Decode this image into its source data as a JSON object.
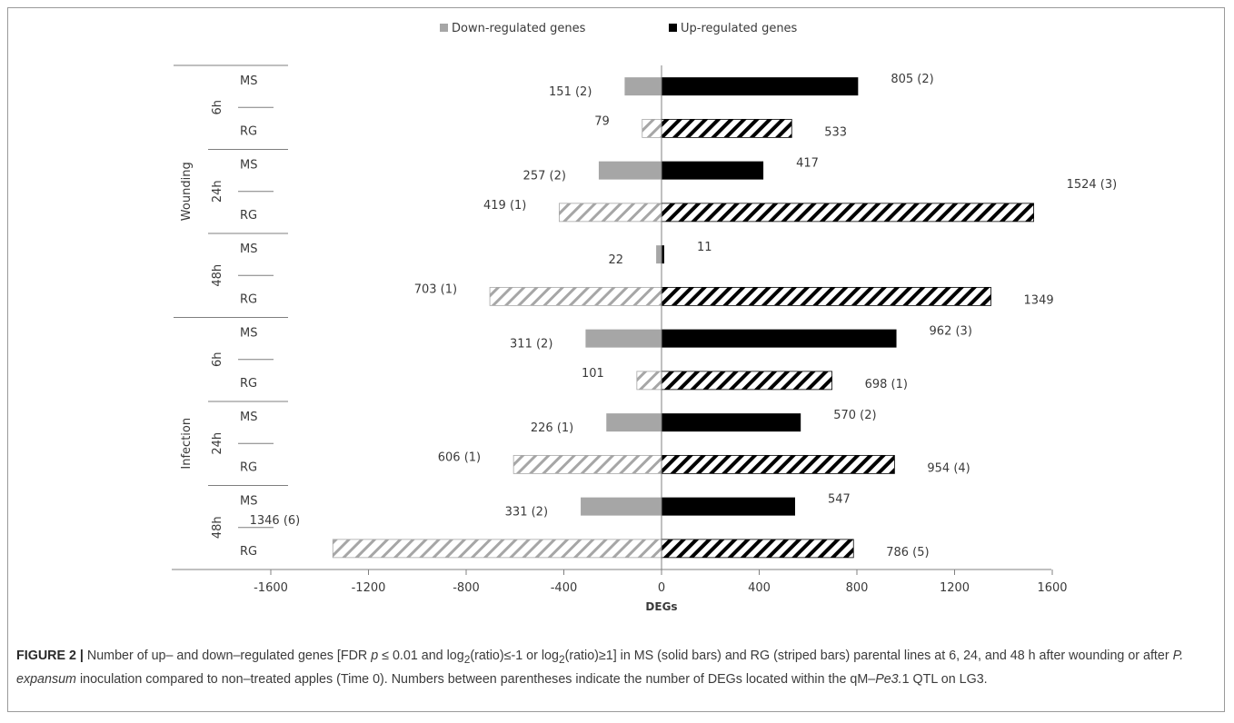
{
  "chart_data": {
    "type": "bar",
    "orientation": "horizontal",
    "xlabel": "DEGs",
    "xlim": [
      -1600,
      1600
    ],
    "xticks": [
      "-1600",
      "-1200",
      "-800",
      "-400",
      "0",
      "400",
      "800",
      "1200",
      "1600"
    ],
    "legend_position": "top-center",
    "group_labels": [
      "Wounding",
      "Infection"
    ],
    "time_labels": [
      "6h",
      "24h",
      "48h"
    ],
    "rows": [
      {
        "group": "Wounding",
        "time": "6h",
        "line": "MS",
        "down": 151,
        "up": 805,
        "down_label": "151 (2)",
        "up_label": "805 (2)"
      },
      {
        "group": "Wounding",
        "time": "6h",
        "line": "RG",
        "down": 79,
        "up": 533,
        "down_label": "79",
        "up_label": "533"
      },
      {
        "group": "Wounding",
        "time": "24h",
        "line": "MS",
        "down": 257,
        "up": 417,
        "down_label": "257 (2)",
        "up_label": "417"
      },
      {
        "group": "Wounding",
        "time": "24h",
        "line": "RG",
        "down": 419,
        "up": 1524,
        "down_label": "419 (1)",
        "up_label": "1524 (3)"
      },
      {
        "group": "Wounding",
        "time": "48h",
        "line": "MS",
        "down": 22,
        "up": 11,
        "down_label": "22",
        "up_label": "11"
      },
      {
        "group": "Wounding",
        "time": "48h",
        "line": "RG",
        "down": 703,
        "up": 1349,
        "down_label": "703 (1)",
        "up_label": "1349"
      },
      {
        "group": "Infection",
        "time": "6h",
        "line": "MS",
        "down": 311,
        "up": 962,
        "down_label": "311 (2)",
        "up_label": "962 (3)"
      },
      {
        "group": "Infection",
        "time": "6h",
        "line": "RG",
        "down": 101,
        "up": 698,
        "down_label": "101",
        "up_label": "698 (1)"
      },
      {
        "group": "Infection",
        "time": "24h",
        "line": "MS",
        "down": 226,
        "up": 570,
        "down_label": "226 (1)",
        "up_label": "570 (2)"
      },
      {
        "group": "Infection",
        "time": "24h",
        "line": "RG",
        "down": 606,
        "up": 954,
        "down_label": "606 (1)",
        "up_label": "954 (4)"
      },
      {
        "group": "Infection",
        "time": "48h",
        "line": "MS",
        "down": 331,
        "up": 547,
        "down_label": "331 (2)",
        "up_label": "547"
      },
      {
        "group": "Infection",
        "time": "48h",
        "line": "RG",
        "down": 1346,
        "up": 786,
        "down_label": "1346 (6)",
        "up_label": "786 (5)"
      }
    ],
    "series": [
      {
        "name": "Down-regulated genes",
        "key": "down",
        "color": "#a6a6a6",
        "sign": -1
      },
      {
        "name": "Up-regulated genes",
        "key": "up",
        "color": "#000000",
        "sign": 1
      }
    ],
    "patterns": {
      "MS": "solid",
      "RG": "striped"
    }
  },
  "caption": {
    "label": "FIGURE 2 |",
    "t1": " Number of up– and down–regulated genes [FDR ",
    "p": "p",
    "t2": " ≤ 0.01 and log",
    "sub": "2",
    "t3": "(ratio)≤-1 or log",
    "t4": "(ratio)≥1] in MS (solid bars) and RG (striped bars) parental lines at 6, 24, and 48 h after wounding or after ",
    "species": "P. expansum",
    "t5": " inoculation compared to non–treated apples (Time 0). Numbers between parentheses indicate the number of DEGs located within the qM–",
    "qtl": "Pe3.",
    "t6": "1 QTL on LG3."
  }
}
